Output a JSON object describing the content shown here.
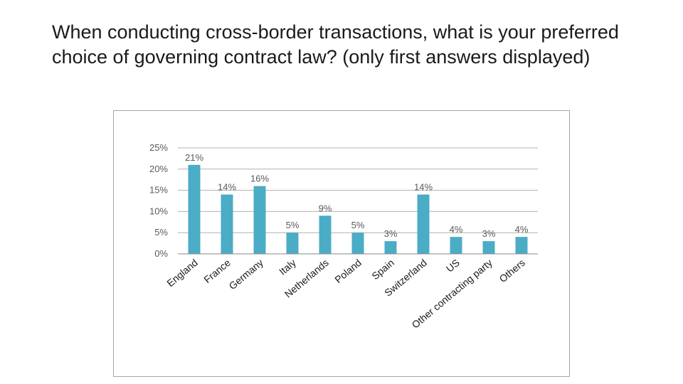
{
  "slide": {
    "title": "When conducting cross-border transactions, what is your preferred choice of governing contract law? (only first answers displayed)"
  },
  "colors": {
    "bar": "#4bacc6",
    "grid": "#b0b0b0",
    "axis": "#888888"
  },
  "chart_data": {
    "type": "bar",
    "title": "",
    "xlabel": "",
    "ylabel": "",
    "ylim": [
      0,
      25
    ],
    "yticks": [
      "0%",
      "5%",
      "10%",
      "15%",
      "20%",
      "25%"
    ],
    "ytick_values": [
      0,
      5,
      10,
      15,
      20,
      25
    ],
    "grid": true,
    "legend": "none",
    "categories": [
      "England",
      "France",
      "Germany",
      "Italy",
      "Netherlands",
      "Poland",
      "Spain",
      "Switzerland",
      "US",
      "Other contracting party",
      "Others"
    ],
    "values": [
      21,
      14,
      16,
      5,
      9,
      5,
      3,
      14,
      4,
      3,
      4
    ],
    "data_labels": [
      "21%",
      "14%",
      "16%",
      "5%",
      "9%",
      "5%",
      "3%",
      "14%",
      "4%",
      "3%",
      "4%"
    ]
  }
}
